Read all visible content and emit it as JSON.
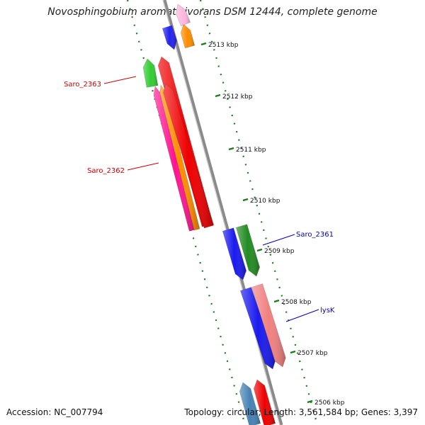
{
  "title": "Novosphingobium aromaticivorans DSM 12444, complete genome",
  "footer": {
    "accession": "Accession: NC_007794",
    "stats": "Topology: circular; Length: 3,561,584 bp; Genes: 3,397"
  },
  "colors": {
    "backbone": "#8a8a8a",
    "tick": "#1e7a1e",
    "forward_label": "#cc0000",
    "reverse_label": "#0000cc"
  },
  "ticks": [
    "2513 kbp",
    "2512 kbp",
    "2511 kbp",
    "2510 kbp",
    "2509 kbp",
    "2508 kbp",
    "2507 kbp",
    "2506 kbp"
  ],
  "gene_labels": [
    {
      "text": "Saro_2363",
      "strand": "forward"
    },
    {
      "text": "Saro_2362",
      "strand": "forward"
    },
    {
      "text": "Saro_2361",
      "strand": "reverse"
    },
    {
      "text": "lysK",
      "strand": "reverse"
    }
  ],
  "genes": [
    {
      "color": "#2222ee",
      "icon": "arrow-gene-icon"
    },
    {
      "color": "#ff8c00",
      "icon": "arrow-gene-icon"
    },
    {
      "color": "#ffb6e0",
      "icon": "arrow-gene-icon"
    },
    {
      "color": "#33cc33",
      "icon": "arrow-gene-icon"
    },
    {
      "color": "#ee0000",
      "icon": "arrow-gene-icon"
    },
    {
      "color": "#ff1493",
      "icon": "arrow-gene-icon"
    },
    {
      "color": "#ff8c00",
      "icon": "arrow-gene-icon"
    },
    {
      "color": "#ee0000",
      "icon": "arrow-gene-icon"
    },
    {
      "color": "#1a1aee",
      "icon": "arrow-gene-icon"
    },
    {
      "color": "#228b22",
      "icon": "arrow-gene-icon"
    },
    {
      "color": "#1a1aee",
      "icon": "arrow-gene-icon"
    },
    {
      "color": "#f08080",
      "icon": "arrow-gene-icon"
    },
    {
      "color": "#4682b4",
      "icon": "arrow-gene-icon"
    },
    {
      "color": "#ee0000",
      "icon": "arrow-gene-icon"
    }
  ]
}
